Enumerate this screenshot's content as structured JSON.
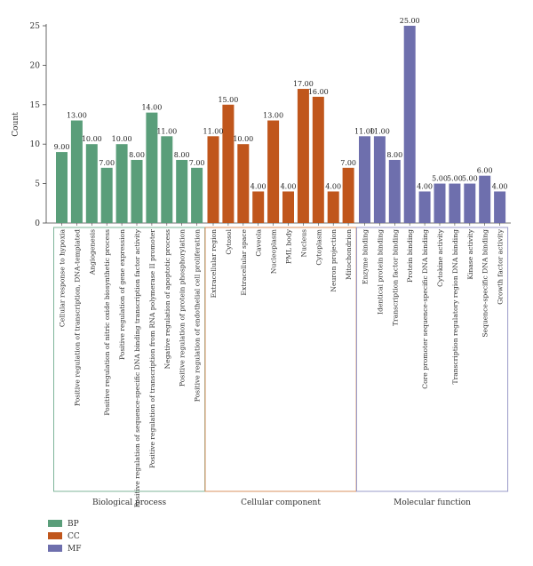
{
  "chart_data": {
    "type": "bar",
    "ylabel": "Count",
    "ylim": [
      0,
      25
    ],
    "yticks": [
      0,
      5,
      10,
      15,
      20,
      25
    ],
    "groups": [
      {
        "key": "BP",
        "label": "Biological process",
        "color": "#5a9e7a",
        "border": "#7fb59a",
        "categories": [
          "Cellular response to hypoxia",
          "Positive regulation of transcription, DNA-templated",
          "Angiogenesis",
          "Positive regulation of nitric oxide biosynthetic process",
          "Positive regulation of gene expression",
          "Positive regulation of sequence-specific DNA binding transcription factor activity",
          "Positive regulation of transcription from RNA polymerase II promoter",
          "Negative regulation of apoptotic process",
          "Positive regulation of protein phosphorylation",
          "Positive regulation of endothelial cell proliferation"
        ],
        "values": [
          9,
          13,
          10,
          7,
          10,
          8,
          14,
          11,
          8,
          7
        ],
        "value_labels": [
          "9.00",
          "13.00",
          "10.00",
          "7.00",
          "10.00",
          "8.00",
          "14.00",
          "11.00",
          "8.00",
          "7.00"
        ]
      },
      {
        "key": "CC",
        "label": "Cellular component",
        "color": "#c0561c",
        "border": "#d9925f",
        "categories": [
          "Extracellular region",
          "Cytosol",
          "Extracellular space",
          "Caveola",
          "Nucleoplasm",
          "PML body",
          "Nucleus",
          "Cytoplasm",
          "Neuron projection",
          "Mitochondrion"
        ],
        "values": [
          11,
          15,
          10,
          4,
          13,
          4,
          17,
          16,
          4,
          7
        ],
        "value_labels": [
          "11.00",
          "15.00",
          "10.00",
          "4.00",
          "13.00",
          "4.00",
          "17.00",
          "16.00",
          "4.00",
          "7.00"
        ]
      },
      {
        "key": "MF",
        "label": "Molecular function",
        "color": "#6e6fad",
        "border": "#9a9bc8",
        "categories": [
          "Enzyme binding",
          "Identical protein binding",
          "Transcription factor binding",
          "Protein binding",
          "Core promoter sequence-specific DNA binding",
          "Cytokine activity",
          "Transcription regulatory region DNA binding",
          "Kinase activity",
          "Sequence-specific DNA binding",
          "Growth factor activity"
        ],
        "values": [
          11,
          11,
          8,
          25,
          4,
          5,
          5,
          5,
          6,
          4
        ],
        "value_labels": [
          "11.00",
          "11.00",
          "8.00",
          "25.00",
          "4.00",
          "5.00",
          "5.00",
          "5.00",
          "6.00",
          "4.00"
        ]
      }
    ],
    "legend": {
      "placement": "bottom-left",
      "entries": [
        "BP",
        "CC",
        "MF"
      ]
    }
  }
}
